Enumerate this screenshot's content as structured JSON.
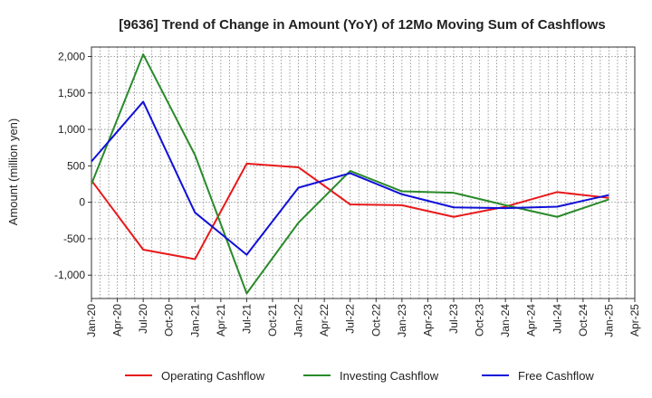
{
  "chart_data": {
    "type": "line",
    "title": "[9636]  Trend of Change in Amount (YoY) of 12Mo Moving Sum of Cashflows",
    "xlabel": "",
    "ylabel": "Amount (million yen)",
    "ylim": [
      -1320,
      2130
    ],
    "yticks": [
      -1000,
      -500,
      0,
      500,
      1000,
      1500,
      2000
    ],
    "ytick_labels": [
      "-1,000",
      "-500",
      "0",
      "500",
      "1,000",
      "1,500",
      "2,000"
    ],
    "x_categories": [
      "Jan-20",
      "Apr-20",
      "Jul-20",
      "Oct-20",
      "Jan-21",
      "Apr-21",
      "Jul-21",
      "Oct-21",
      "Jan-22",
      "Apr-22",
      "Jul-22",
      "Oct-22",
      "Jan-23",
      "Apr-23",
      "Jul-23",
      "Oct-23",
      "Jan-24",
      "Apr-24",
      "Jul-24",
      "Oct-24",
      "Jan-25",
      "Apr-25"
    ],
    "x_data": [
      "Jan-20",
      "Jul-20",
      "Jan-21",
      "Jul-21",
      "Jan-22",
      "Jul-22",
      "Jan-23",
      "Jul-23",
      "Jan-24",
      "Jul-24",
      "Jan-25"
    ],
    "grid": true,
    "legend_position": "bottom",
    "series": [
      {
        "name": "Operating Cashflow",
        "color": "#e8191b",
        "values": [
          300,
          -650,
          -780,
          530,
          480,
          -30,
          -40,
          -200,
          -60,
          140,
          60
        ]
      },
      {
        "name": "Investing Cashflow",
        "color": "#2a8a2a",
        "values": [
          250,
          2030,
          650,
          -1250,
          -280,
          430,
          150,
          130,
          -40,
          -200,
          40
        ]
      },
      {
        "name": "Free Cashflow",
        "color": "#1010d8",
        "values": [
          560,
          1380,
          -140,
          -720,
          200,
          400,
          110,
          -70,
          -80,
          -60,
          100
        ]
      }
    ]
  }
}
